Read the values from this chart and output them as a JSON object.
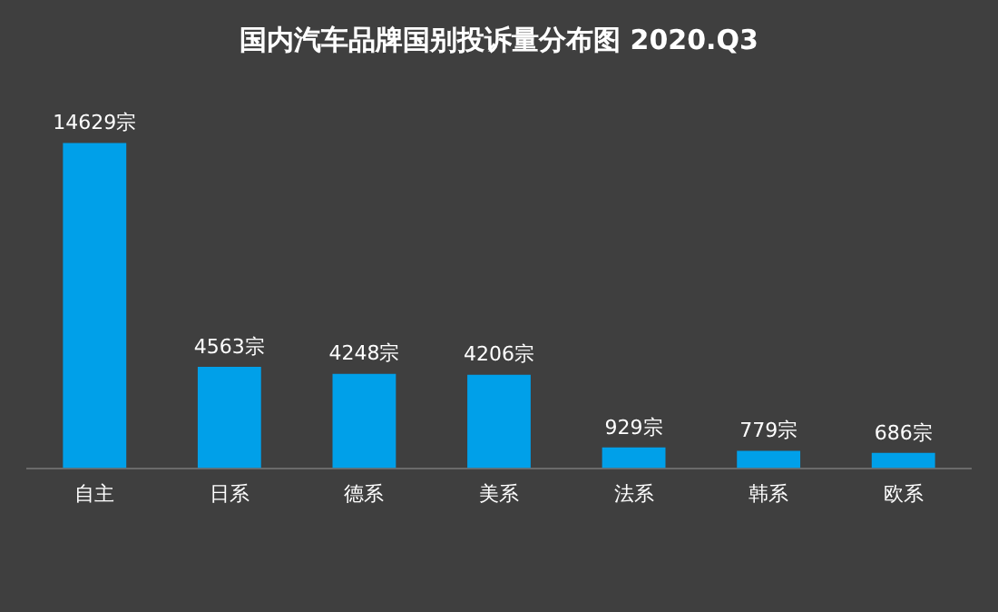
{
  "chart_data": {
    "type": "bar",
    "title": "国内汽车品牌国别投诉量分布图 2020.Q3",
    "categories": [
      "自主",
      "日系",
      "德系",
      "美系",
      "法系",
      "韩系",
      "欧系"
    ],
    "values": [
      14629,
      4563,
      4248,
      4206,
      929,
      779,
      686
    ],
    "value_labels": [
      "14629宗",
      "4563宗",
      "4248宗",
      "4206宗",
      "929宗",
      "779宗",
      "686宗"
    ],
    "color": "#00a0e9",
    "grid": false,
    "legend": false
  }
}
